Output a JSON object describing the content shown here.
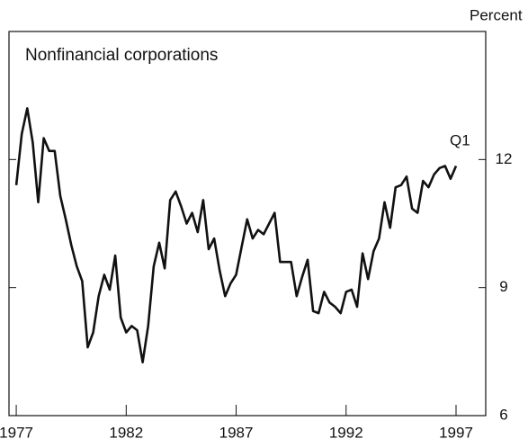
{
  "chart_data": {
    "type": "line",
    "title": "Nonfinancial corporations",
    "ylabel": "Percent",
    "annotation": "Q1",
    "x": [
      1977,
      1977.25,
      1977.5,
      1977.75,
      1978,
      1978.25,
      1978.5,
      1978.75,
      1979,
      1979.25,
      1979.5,
      1979.75,
      1980,
      1980.25,
      1980.5,
      1980.75,
      1981,
      1981.25,
      1981.5,
      1981.75,
      1982,
      1982.25,
      1982.5,
      1982.75,
      1983,
      1983.25,
      1983.5,
      1983.75,
      1984,
      1984.25,
      1984.5,
      1984.75,
      1985,
      1985.25,
      1985.5,
      1985.75,
      1986,
      1986.25,
      1986.5,
      1986.75,
      1987,
      1987.25,
      1987.5,
      1987.75,
      1988,
      1988.25,
      1988.5,
      1988.75,
      1989,
      1989.25,
      1989.5,
      1989.75,
      1990,
      1990.25,
      1990.5,
      1990.75,
      1991,
      1991.25,
      1991.5,
      1991.75,
      1992,
      1992.25,
      1992.5,
      1992.75,
      1993,
      1993.25,
      1993.5,
      1993.75,
      1994,
      1994.25,
      1994.5,
      1994.75,
      1995,
      1995.25,
      1995.5,
      1995.75,
      1996,
      1996.25,
      1996.5,
      1996.75,
      1997
    ],
    "series": [
      {
        "name": "Nonfinancial corporations",
        "color": "#111111",
        "values": [
          11.4,
          12.6,
          13.2,
          12.4,
          11.0,
          12.5,
          12.2,
          12.2,
          11.15,
          10.6,
          10.0,
          9.5,
          9.15,
          7.6,
          7.95,
          8.8,
          9.3,
          8.95,
          9.75,
          8.3,
          7.95,
          8.1,
          8.0,
          7.25,
          8.1,
          9.5,
          10.05,
          9.45,
          11.05,
          11.25,
          10.9,
          10.5,
          10.75,
          10.3,
          11.05,
          9.9,
          10.15,
          9.4,
          8.8,
          9.1,
          9.3,
          9.95,
          10.6,
          10.15,
          10.35,
          10.25,
          10.5,
          10.75,
          9.6,
          9.6,
          9.6,
          8.8,
          9.25,
          9.65,
          8.45,
          8.4,
          8.9,
          8.65,
          8.55,
          8.4,
          8.9,
          8.95,
          8.55,
          9.8,
          9.2,
          9.85,
          10.15,
          11.0,
          10.4,
          11.35,
          11.4,
          11.6,
          10.85,
          10.75,
          11.5,
          11.35,
          11.65,
          11.8,
          11.85,
          11.55,
          11.85
        ]
      }
    ],
    "xlim": [
      1976.67,
      1998.35
    ],
    "ylim": [
      6,
      15
    ],
    "xticks": [
      1977,
      1982,
      1987,
      1992,
      1997
    ],
    "yticks": [
      6,
      9,
      12
    ]
  }
}
